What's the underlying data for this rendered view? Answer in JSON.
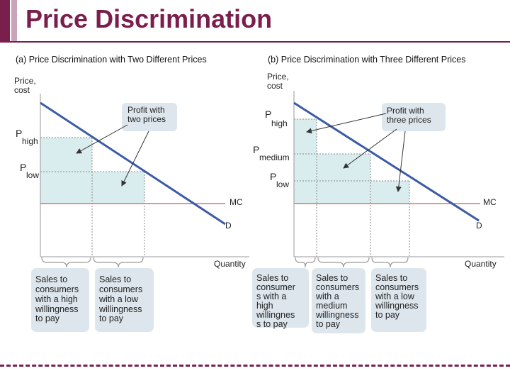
{
  "title": "Price Discrimination",
  "colors": {
    "brand": "#7a1f4d",
    "demand_line": "#3b5ba5",
    "mc_line": "#e07070",
    "profit_fill": "#d9ecee",
    "box_fill": "#dde6ec"
  },
  "panel_a": {
    "heading": "(a) Price Discrimination with Two Different Prices",
    "y_label": [
      "Price,",
      "cost"
    ],
    "p_high": {
      "main": "P",
      "sub": "high"
    },
    "p_low": {
      "main": "P",
      "sub": "low"
    },
    "profit_label": [
      "Profit with",
      "two prices"
    ],
    "mc_label": "MC",
    "d_label": "D",
    "x_label": "Quantity",
    "boxes": [
      [
        "Sales to",
        "consumers",
        "with a high",
        "willingness",
        "to pay"
      ],
      [
        "Sales to",
        "consumers",
        "with a low",
        "willingness",
        "to pay"
      ]
    ]
  },
  "panel_b": {
    "heading": "(b) Price Discrimination with Three Different Prices",
    "y_label": [
      "Price,",
      "cost"
    ],
    "p_high": {
      "main": "P",
      "sub": "high"
    },
    "p_medium": {
      "main": "P",
      "sub": "medium"
    },
    "p_low": {
      "main": "P",
      "sub": "low"
    },
    "profit_label": [
      "Profit with",
      "three prices"
    ],
    "mc_label": "MC",
    "d_label": "D",
    "x_label": "Quantity",
    "boxes": [
      [
        "Sales to",
        "consumer",
        "s with a",
        "high",
        "willingnes",
        "s to pay"
      ],
      [
        "Sales to",
        "consumers",
        "with a",
        "medium",
        "willingness",
        "to pay"
      ],
      [
        "Sales to",
        "consumers",
        "with a low",
        "willingness",
        "to pay"
      ]
    ]
  }
}
